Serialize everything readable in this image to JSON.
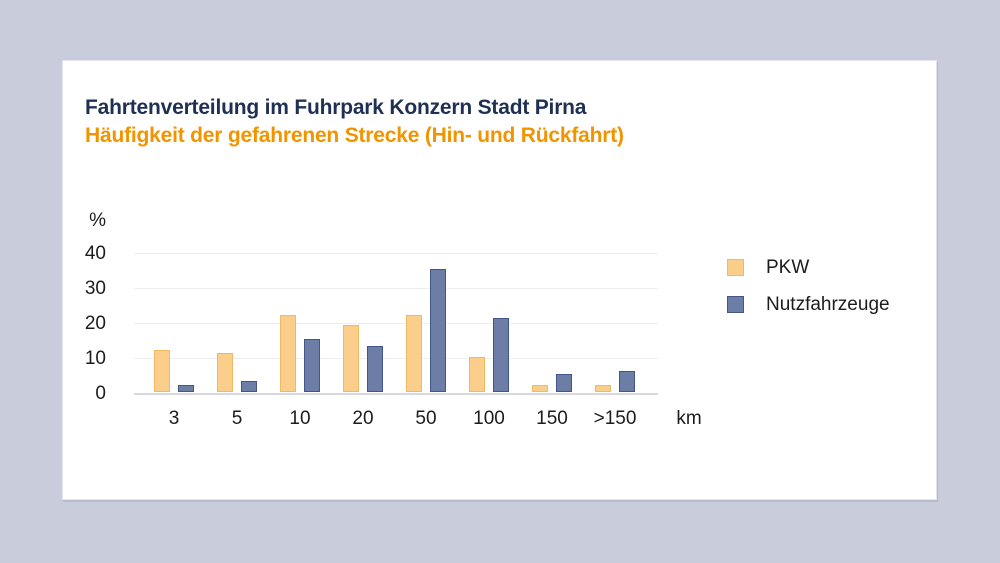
{
  "window": {
    "background": "#C9CCDB",
    "card_background": "#FFFFFF"
  },
  "chart_data": {
    "type": "bar",
    "title": "Fahrtenverteilung im Fuhrpark Konzern Stadt Pirna",
    "subtitle": "Häufigkeit der gefahrenen Strecke (Hin- und Rückfahrt)",
    "title_color": "#1F3053",
    "subtitle_color": "#F29400",
    "categories": [
      "3",
      "5",
      "10",
      "20",
      "50",
      "100",
      "150",
      ">150"
    ],
    "series": [
      {
        "name": "PKW",
        "fill": "#FBCE8C",
        "border": "#F2B964",
        "values": [
          12,
          11,
          22,
          19,
          22,
          10,
          2,
          2
        ]
      },
      {
        "name": "Nutzfahrzeuge",
        "fill": "#6C7EA5",
        "border": "#42568B",
        "values": [
          2,
          3,
          15,
          13,
          35,
          21,
          5,
          6
        ]
      }
    ],
    "y_axis": {
      "unit": "%",
      "ticks": [
        0,
        10,
        20,
        30,
        40
      ],
      "max": 40
    },
    "x_axis": {
      "unit": "km"
    },
    "grid": true,
    "gridline_color": "#EEEEF1",
    "baseline_color": "#D6D8DD",
    "legend_position": "right"
  }
}
